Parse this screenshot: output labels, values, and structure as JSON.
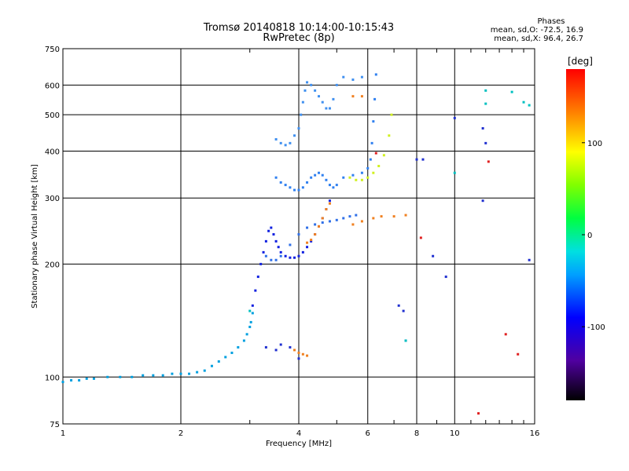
{
  "header": {
    "title": "Tromsø 20140818 10:14:00-10:15:43",
    "subtitle": "RwPretec (8p)"
  },
  "phase_box": {
    "heading": "Phases",
    "line_o": "mean, sd,O: -72.5, 16.9",
    "line_x": "mean, sd,X:  96.4, 26.7"
  },
  "colorbar": {
    "unit": "[deg]",
    "ticks": [
      "100",
      "0",
      "-100"
    ],
    "tick_values": [
      100,
      0,
      -100
    ],
    "range": [
      -180,
      180
    ]
  },
  "chart_data": {
    "type": "scatter",
    "xlabel": "Frequency [MHz]",
    "ylabel": "Stationary phase Virtual Height [km]",
    "xscale": "log",
    "yscale": "log",
    "xlim": [
      1,
      16
    ],
    "ylim": [
      75,
      750
    ],
    "x_ticks": [
      1,
      2,
      4,
      6,
      8,
      10,
      16
    ],
    "x_tick_labels": [
      "1",
      "2",
      "4",
      "6",
      "8",
      "10",
      "16"
    ],
    "y_ticks": [
      75,
      100,
      200,
      300,
      400,
      500,
      600,
      750
    ],
    "y_tick_labels": [
      "75",
      "100",
      "200",
      "300",
      "400",
      "500",
      "600",
      "750"
    ],
    "grid": true,
    "series": [
      {
        "color": "#00a0e0",
        "points": [
          [
            1.0,
            97
          ],
          [
            1.05,
            98
          ],
          [
            1.1,
            98
          ],
          [
            1.15,
            99
          ],
          [
            1.2,
            99
          ],
          [
            1.3,
            100
          ],
          [
            1.4,
            100
          ],
          [
            1.5,
            100
          ],
          [
            1.6,
            101
          ],
          [
            1.7,
            101
          ],
          [
            1.8,
            101
          ],
          [
            1.9,
            102
          ],
          [
            2.0,
            102
          ],
          [
            2.1,
            102
          ],
          [
            2.2,
            103
          ],
          [
            2.3,
            104
          ],
          [
            2.4,
            107
          ],
          [
            2.5,
            110
          ],
          [
            2.6,
            113
          ],
          [
            2.7,
            116
          ],
          [
            2.8,
            120
          ],
          [
            2.9,
            125
          ],
          [
            2.95,
            130
          ],
          [
            3.0,
            136
          ],
          [
            3.02,
            140
          ],
          [
            3.05,
            148
          ]
        ]
      },
      {
        "color": "#1020e0",
        "points": [
          [
            3.05,
            155
          ],
          [
            3.1,
            170
          ],
          [
            3.15,
            185
          ],
          [
            3.2,
            200
          ],
          [
            3.25,
            215
          ],
          [
            3.3,
            230
          ],
          [
            3.35,
            245
          ],
          [
            3.4,
            250
          ],
          [
            3.45,
            240
          ],
          [
            3.5,
            230
          ],
          [
            3.55,
            222
          ],
          [
            3.6,
            215
          ],
          [
            3.7,
            210
          ],
          [
            3.8,
            208
          ],
          [
            3.9,
            208
          ],
          [
            4.0,
            210
          ],
          [
            4.1,
            215
          ],
          [
            4.2,
            222
          ],
          [
            4.3,
            230
          ],
          [
            4.4,
            240
          ],
          [
            4.5,
            252
          ],
          [
            4.6,
            265
          ],
          [
            4.7,
            280
          ],
          [
            4.8,
            295
          ]
        ]
      },
      {
        "color": "#3070e8",
        "points": [
          [
            3.3,
            210
          ],
          [
            3.4,
            205
          ],
          [
            3.5,
            205
          ],
          [
            3.6,
            210
          ],
          [
            3.8,
            225
          ],
          [
            4.0,
            240
          ],
          [
            4.2,
            250
          ],
          [
            4.4,
            255
          ],
          [
            4.6,
            258
          ],
          [
            4.8,
            260
          ],
          [
            5.0,
            262
          ],
          [
            5.2,
            265
          ],
          [
            5.4,
            268
          ],
          [
            5.6,
            270
          ]
        ]
      },
      {
        "color": "#3080f0",
        "points": [
          [
            3.5,
            340
          ],
          [
            3.6,
            330
          ],
          [
            3.7,
            325
          ],
          [
            3.8,
            320
          ],
          [
            3.9,
            315
          ],
          [
            4.0,
            315
          ],
          [
            4.1,
            320
          ],
          [
            4.2,
            330
          ],
          [
            4.3,
            340
          ],
          [
            4.4,
            345
          ],
          [
            4.5,
            350
          ],
          [
            4.6,
            345
          ],
          [
            4.7,
            335
          ],
          [
            4.8,
            325
          ],
          [
            4.9,
            320
          ],
          [
            5.0,
            325
          ],
          [
            5.2,
            340
          ],
          [
            5.5,
            345
          ],
          [
            5.8,
            350
          ],
          [
            6.0,
            360
          ],
          [
            6.1,
            380
          ],
          [
            6.15,
            420
          ],
          [
            6.2,
            480
          ],
          [
            6.25,
            550
          ],
          [
            6.3,
            640
          ]
        ]
      },
      {
        "color": "#4090f0",
        "points": [
          [
            3.5,
            430
          ],
          [
            3.6,
            420
          ],
          [
            3.7,
            415
          ],
          [
            3.8,
            420
          ],
          [
            3.9,
            440
          ],
          [
            4.0,
            460
          ],
          [
            4.05,
            500
          ],
          [
            4.1,
            540
          ],
          [
            4.15,
            580
          ],
          [
            4.2,
            610
          ],
          [
            4.3,
            600
          ],
          [
            4.4,
            580
          ],
          [
            4.5,
            560
          ],
          [
            4.6,
            540
          ],
          [
            4.7,
            520
          ],
          [
            4.8,
            520
          ],
          [
            4.9,
            550
          ],
          [
            5.0,
            600
          ],
          [
            5.2,
            630
          ],
          [
            5.5,
            620
          ],
          [
            5.8,
            630
          ]
        ]
      },
      {
        "color": "#d0f020",
        "points": [
          [
            5.4,
            340
          ],
          [
            5.6,
            335
          ],
          [
            5.8,
            335
          ],
          [
            6.0,
            340
          ],
          [
            6.2,
            350
          ],
          [
            6.4,
            365
          ],
          [
            6.6,
            390
          ],
          [
            6.8,
            440
          ],
          [
            6.9,
            500
          ]
        ]
      },
      {
        "color": "#f08020",
        "points": [
          [
            4.2,
            228
          ],
          [
            4.3,
            232
          ],
          [
            4.4,
            240
          ],
          [
            4.5,
            252
          ],
          [
            4.6,
            265
          ],
          [
            4.7,
            280
          ],
          [
            4.8,
            290
          ],
          [
            5.5,
            255
          ],
          [
            5.8,
            260
          ],
          [
            6.2,
            265
          ],
          [
            6.5,
            268
          ],
          [
            7.0,
            268
          ],
          [
            7.5,
            270
          ],
          [
            3.9,
            118
          ],
          [
            4.0,
            116
          ],
          [
            4.1,
            115
          ],
          [
            4.2,
            114
          ],
          [
            5.5,
            560
          ],
          [
            5.8,
            560
          ]
        ]
      },
      {
        "color": "#e02020",
        "points": [
          [
            6.3,
            395
          ],
          [
            8.2,
            235
          ],
          [
            11.5,
            80
          ],
          [
            12.2,
            375
          ],
          [
            13.5,
            130
          ],
          [
            14.5,
            115
          ]
        ]
      },
      {
        "color": "#2030d0",
        "points": [
          [
            3.3,
            120
          ],
          [
            3.5,
            118
          ],
          [
            3.6,
            122
          ],
          [
            3.8,
            120
          ],
          [
            4.0,
            112
          ],
          [
            7.2,
            155
          ],
          [
            7.4,
            150
          ],
          [
            7.5,
            125
          ],
          [
            8.0,
            380
          ],
          [
            8.3,
            380
          ],
          [
            8.8,
            210
          ],
          [
            9.5,
            185
          ],
          [
            10.0,
            490
          ],
          [
            11.8,
            295
          ],
          [
            11.8,
            460
          ],
          [
            12.0,
            420
          ],
          [
            15.5,
            205
          ]
        ]
      },
      {
        "color": "#00c0c0",
        "points": [
          [
            10.0,
            350
          ],
          [
            12.0,
            580
          ],
          [
            12.0,
            535
          ],
          [
            14.0,
            575
          ],
          [
            15.0,
            540
          ],
          [
            15.5,
            530
          ],
          [
            3.0,
            150
          ],
          [
            7.5,
            125
          ]
        ]
      }
    ]
  }
}
